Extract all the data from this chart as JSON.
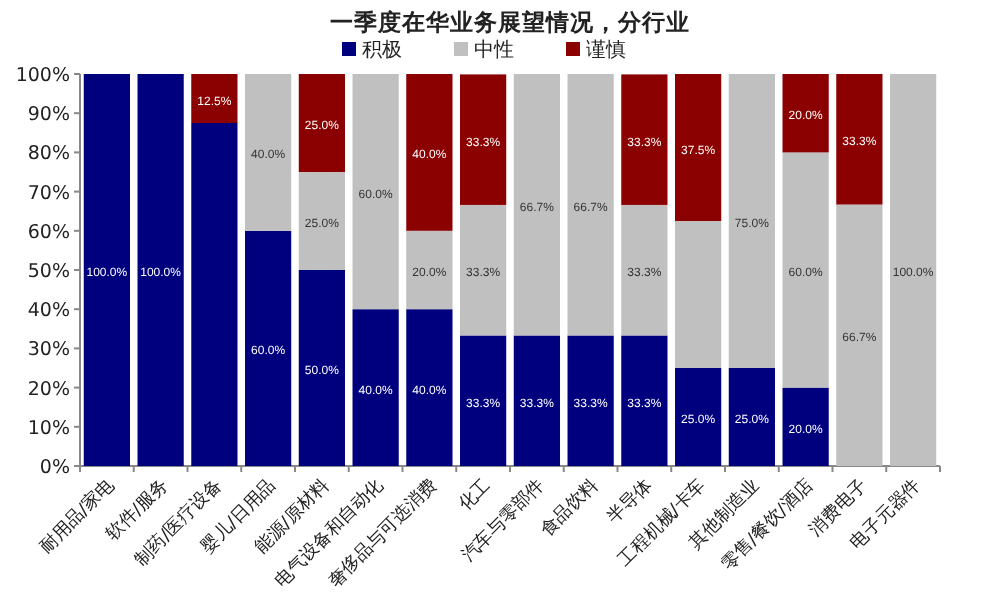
{
  "chart_data": {
    "type": "bar",
    "stacked": true,
    "title": "一季度在华业务展望情况，分行业",
    "legend": "top",
    "categories": [
      "耐用品/家电",
      "软件/服务",
      "制药/医疗设备",
      "婴儿/日用品",
      "能源/原材料",
      "电气设备和自动化",
      "奢侈品与可选消费",
      "化工",
      "汽车与零部件",
      "食品饮料",
      "半导体",
      "工程机械/卡车",
      "其他制造业",
      "零售/餐饮/酒店",
      "消费电子",
      "电子元器件"
    ],
    "series": [
      {
        "name": "积极",
        "color": "#00007f",
        "values": [
          100,
          100,
          87.5,
          60,
          50,
          40,
          40,
          33.3,
          33.3,
          33.3,
          33.3,
          25,
          25,
          20,
          0,
          0
        ],
        "value_labels": [
          "100.0%",
          "100.0%",
          null,
          "60.0%",
          "50.0%",
          "40.0%",
          "40.0%",
          "33.3%",
          "33.3%",
          "33.3%",
          "33.3%",
          "25.0%",
          "25.0%",
          "20.0%",
          null,
          null
        ]
      },
      {
        "name": "中性",
        "color": "#c0c0c0",
        "values": [
          0,
          0,
          0,
          40,
          25,
          60,
          20,
          33.3,
          66.7,
          66.7,
          33.3,
          37.5,
          75,
          60,
          66.7,
          100
        ],
        "value_labels": [
          null,
          null,
          null,
          "40.0%",
          "25.0%",
          "60.0%",
          "20.0%",
          "33.3%",
          "66.7%",
          "66.7%",
          "33.3%",
          null,
          "75.0%",
          "60.0%",
          "66.7%",
          "100.0%"
        ]
      },
      {
        "name": "谨慎",
        "color": "#8b0000",
        "values": [
          0,
          0,
          12.5,
          0,
          25,
          0,
          40,
          33.3,
          0,
          0,
          33.3,
          37.5,
          0,
          20,
          33.3,
          0
        ],
        "value_labels": [
          null,
          null,
          "12.5%",
          null,
          "25.0%",
          null,
          "40.0%",
          "33.3%",
          null,
          null,
          "33.3%",
          "37.5%",
          null,
          "20.0%",
          "33.3%",
          null
        ]
      }
    ],
    "ylim": [
      0,
      100
    ],
    "yticks": [
      {
        "value": 0,
        "label": "0%"
      },
      {
        "value": 10,
        "label": "10%"
      },
      {
        "value": 20,
        "label": "20%"
      },
      {
        "value": 30,
        "label": "30%"
      },
      {
        "value": 40,
        "label": "40%"
      },
      {
        "value": 50,
        "label": "50%"
      },
      {
        "value": 60,
        "label": "60%"
      },
      {
        "value": 70,
        "label": "70%"
      },
      {
        "value": 80,
        "label": "80%"
      },
      {
        "value": 90,
        "label": "90%"
      },
      {
        "value": 100,
        "label": "100%"
      }
    ]
  }
}
